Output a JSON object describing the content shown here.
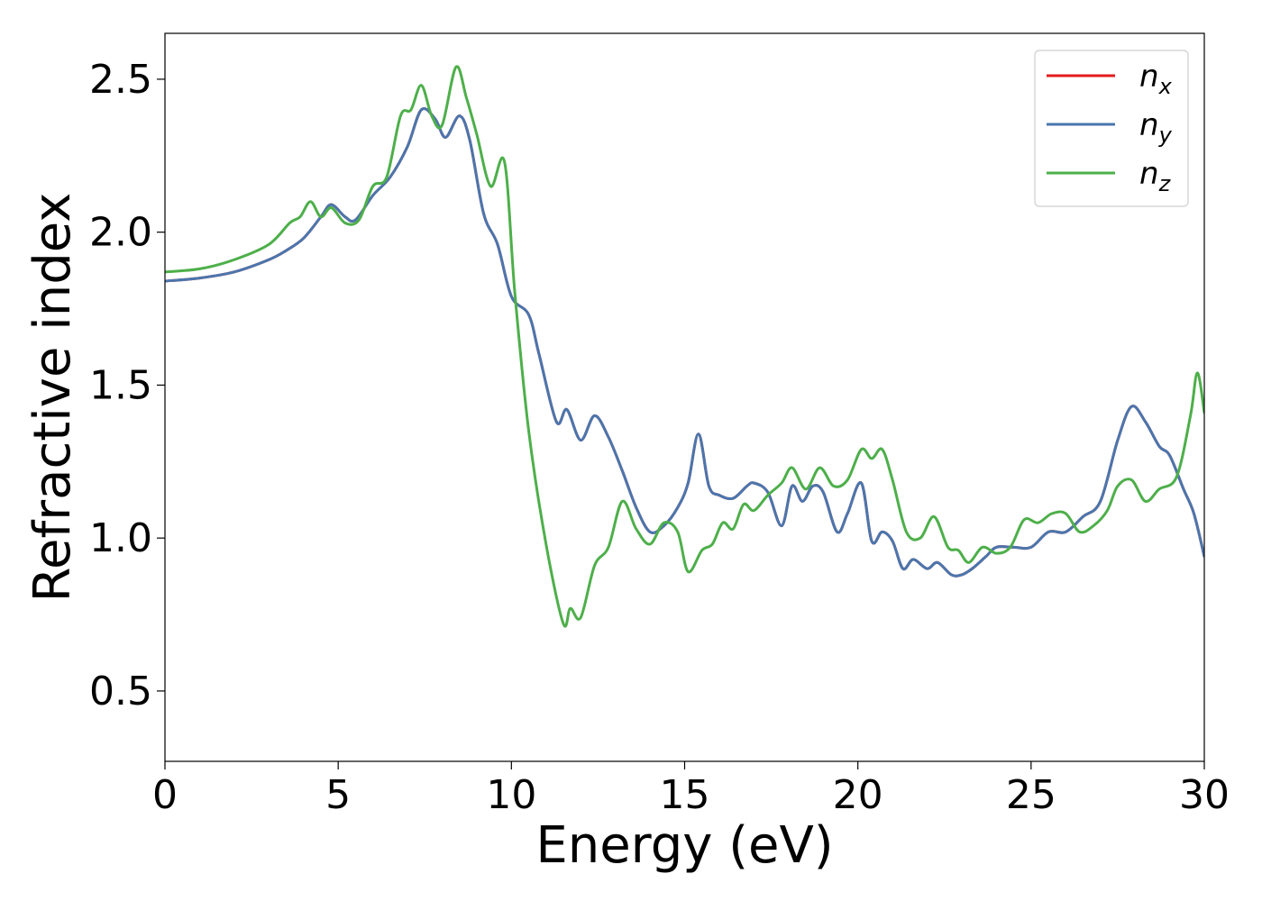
{
  "chart_data": {
    "type": "line",
    "xlabel": "Energy (eV)",
    "ylabel": "Refractive index",
    "xlim": [
      0,
      30
    ],
    "ylim": [
      0.27,
      2.65
    ],
    "xticks": [
      0,
      5,
      10,
      15,
      20,
      25,
      30
    ],
    "xtick_labels": [
      "0",
      "5",
      "10",
      "15",
      "20",
      "25",
      "30"
    ],
    "yticks": [
      0.5,
      1.0,
      1.5,
      2.0,
      2.5
    ],
    "ytick_labels": [
      "0.5",
      "1.0",
      "1.5",
      "2.0",
      "2.5"
    ],
    "grid": false,
    "legend_position": "top-right",
    "series": [
      {
        "name": "n_x",
        "legend_base": "n",
        "legend_sub": "x",
        "color": "#e41a1c",
        "x": [
          0,
          1,
          2,
          3,
          3.5,
          4,
          4.5,
          4.8,
          5.2,
          5.5,
          6,
          6.5,
          7,
          7.4,
          7.8,
          8.1,
          8.5,
          8.8,
          9.2,
          9.6,
          10,
          10.5,
          10.8,
          11.3,
          11.6,
          12,
          12.4,
          12.8,
          13.2,
          13.6,
          14,
          14.4,
          14.8,
          15.1,
          15.4,
          15.7,
          16,
          16.4,
          16.8,
          17,
          17.4,
          17.8,
          18.1,
          18.4,
          18.7,
          19,
          19.4,
          19.7,
          20.1,
          20.4,
          20.7,
          21,
          21.3,
          21.6,
          22,
          22.3,
          22.7,
          23,
          23.3,
          23.7,
          24,
          24.5,
          25,
          25.5,
          26,
          26.5,
          27,
          27.5,
          27.9,
          28.3,
          28.7,
          29,
          29.4,
          29.7,
          30
        ],
        "y": [
          1.84,
          1.85,
          1.87,
          1.91,
          1.94,
          1.98,
          2.05,
          2.09,
          2.05,
          2.04,
          2.12,
          2.18,
          2.28,
          2.4,
          2.37,
          2.31,
          2.38,
          2.3,
          2.06,
          1.96,
          1.79,
          1.73,
          1.6,
          1.38,
          1.42,
          1.32,
          1.4,
          1.33,
          1.22,
          1.1,
          1.02,
          1.04,
          1.1,
          1.18,
          1.34,
          1.17,
          1.14,
          1.13,
          1.17,
          1.18,
          1.15,
          1.04,
          1.17,
          1.12,
          1.17,
          1.15,
          1.02,
          1.08,
          1.18,
          0.99,
          1.02,
          0.99,
          0.9,
          0.93,
          0.9,
          0.92,
          0.88,
          0.88,
          0.9,
          0.94,
          0.97,
          0.97,
          0.97,
          1.02,
          1.02,
          1.07,
          1.12,
          1.32,
          1.43,
          1.38,
          1.3,
          1.27,
          1.16,
          1.08,
          0.94
        ]
      },
      {
        "name": "n_y",
        "legend_base": "n",
        "legend_sub": "y",
        "color": "#4a76ad",
        "x": [
          0,
          1,
          2,
          3,
          3.5,
          4,
          4.5,
          4.8,
          5.2,
          5.5,
          6,
          6.5,
          7,
          7.4,
          7.8,
          8.1,
          8.5,
          8.8,
          9.2,
          9.6,
          10,
          10.5,
          10.8,
          11.3,
          11.6,
          12,
          12.4,
          12.8,
          13.2,
          13.6,
          14,
          14.4,
          14.8,
          15.1,
          15.4,
          15.7,
          16,
          16.4,
          16.8,
          17,
          17.4,
          17.8,
          18.1,
          18.4,
          18.7,
          19,
          19.4,
          19.7,
          20.1,
          20.4,
          20.7,
          21,
          21.3,
          21.6,
          22,
          22.3,
          22.7,
          23,
          23.3,
          23.7,
          24,
          24.5,
          25,
          25.5,
          26,
          26.5,
          27,
          27.5,
          27.9,
          28.3,
          28.7,
          29,
          29.4,
          29.7,
          30
        ],
        "y": [
          1.84,
          1.85,
          1.87,
          1.91,
          1.94,
          1.98,
          2.05,
          2.09,
          2.05,
          2.04,
          2.12,
          2.18,
          2.28,
          2.4,
          2.37,
          2.31,
          2.38,
          2.3,
          2.06,
          1.96,
          1.79,
          1.73,
          1.6,
          1.38,
          1.42,
          1.32,
          1.4,
          1.33,
          1.22,
          1.1,
          1.02,
          1.04,
          1.1,
          1.18,
          1.34,
          1.17,
          1.14,
          1.13,
          1.17,
          1.18,
          1.15,
          1.04,
          1.17,
          1.12,
          1.17,
          1.15,
          1.02,
          1.08,
          1.18,
          0.99,
          1.02,
          0.99,
          0.9,
          0.93,
          0.9,
          0.92,
          0.88,
          0.88,
          0.9,
          0.94,
          0.97,
          0.97,
          0.97,
          1.02,
          1.02,
          1.07,
          1.12,
          1.32,
          1.43,
          1.38,
          1.3,
          1.27,
          1.16,
          1.08,
          0.94
        ]
      },
      {
        "name": "n_z",
        "legend_base": "n",
        "legend_sub": "z",
        "color": "#4daf4a",
        "x": [
          0,
          1,
          2,
          3,
          3.6,
          3.9,
          4.2,
          4.5,
          4.8,
          5.2,
          5.6,
          6,
          6.4,
          6.8,
          7.1,
          7.4,
          7.7,
          8,
          8.4,
          8.7,
          9,
          9.4,
          9.8,
          10.1,
          10.5,
          11,
          11.5,
          11.7,
          12,
          12.4,
          12.8,
          13.2,
          13.6,
          14,
          14.4,
          14.8,
          15.1,
          15.5,
          15.8,
          16.1,
          16.4,
          16.7,
          17,
          17.4,
          17.8,
          18.1,
          18.5,
          18.9,
          19.3,
          19.7,
          20.1,
          20.4,
          20.7,
          21,
          21.4,
          21.8,
          22.2,
          22.6,
          22.9,
          23.2,
          23.6,
          24,
          24.4,
          24.8,
          25.2,
          25.6,
          26,
          26.4,
          26.8,
          27.2,
          27.5,
          27.9,
          28.3,
          28.7,
          29.2,
          29.6,
          29.8,
          30
        ],
        "y": [
          1.87,
          1.88,
          1.91,
          1.96,
          2.03,
          2.05,
          2.1,
          2.05,
          2.08,
          2.03,
          2.04,
          2.15,
          2.18,
          2.38,
          2.4,
          2.48,
          2.38,
          2.35,
          2.54,
          2.44,
          2.32,
          2.15,
          2.23,
          1.8,
          1.35,
          0.98,
          0.72,
          0.77,
          0.74,
          0.91,
          0.97,
          1.12,
          1.03,
          0.98,
          1.05,
          1.02,
          0.89,
          0.96,
          0.98,
          1.05,
          1.03,
          1.11,
          1.09,
          1.14,
          1.18,
          1.23,
          1.16,
          1.23,
          1.17,
          1.19,
          1.29,
          1.26,
          1.29,
          1.19,
          1.02,
          1.0,
          1.07,
          0.97,
          0.96,
          0.92,
          0.97,
          0.95,
          0.97,
          1.06,
          1.05,
          1.08,
          1.08,
          1.02,
          1.04,
          1.09,
          1.17,
          1.19,
          1.12,
          1.16,
          1.2,
          1.4,
          1.54,
          1.41
        ]
      }
    ]
  }
}
